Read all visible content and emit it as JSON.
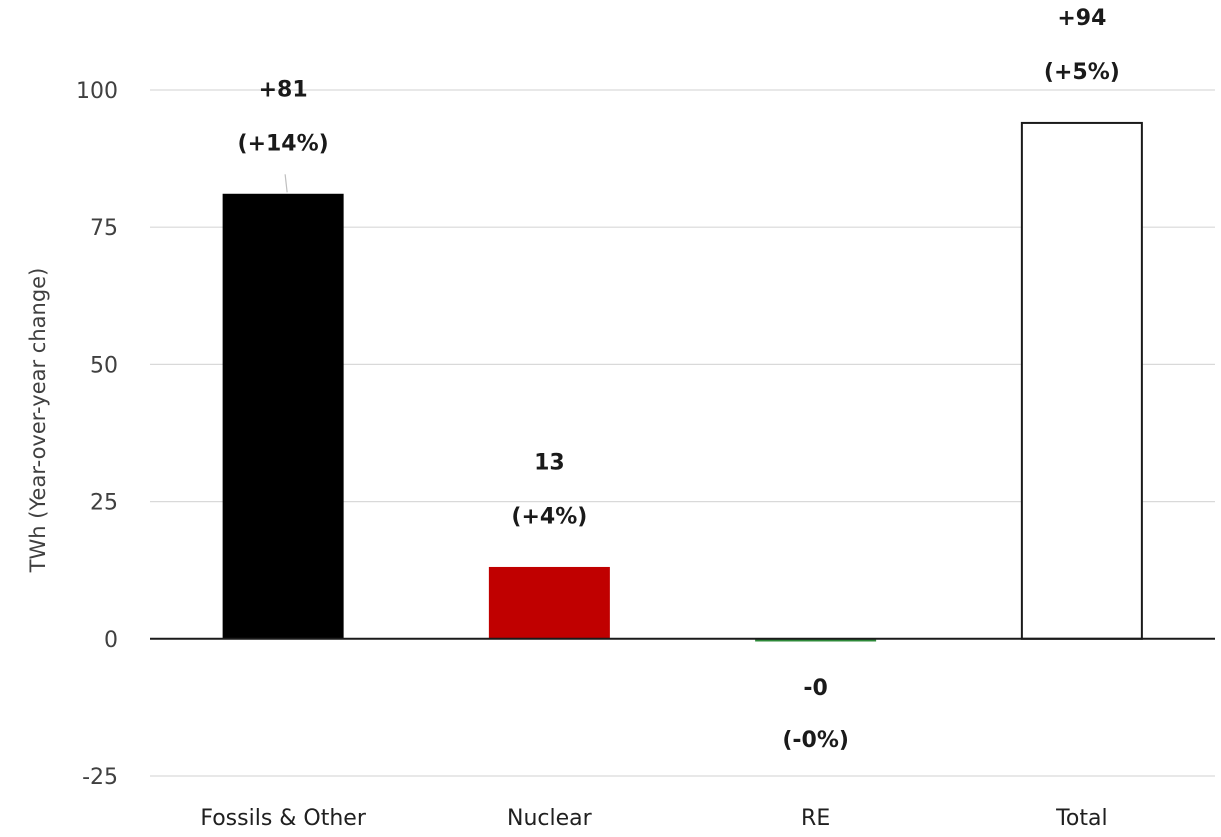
{
  "chart_data": {
    "type": "bar",
    "ylabel": "TWh (Year-over-year change)",
    "ylim": [
      -25,
      100
    ],
    "yticks": [
      -25,
      0,
      25,
      50,
      75,
      100
    ],
    "grid": true,
    "categories": [
      "Fossils & Other",
      "Nuclear",
      "RE",
      "Total"
    ],
    "values": [
      81,
      13,
      -0.4,
      94
    ],
    "value_labels": [
      "+81",
      "13",
      "-0",
      "+94"
    ],
    "percent_labels": [
      "(+14%)",
      "(+4%)",
      "(-0%)",
      "(+5%)"
    ],
    "colors": [
      "#000000",
      "#c00000",
      "#2e8b3a",
      "#ffffff"
    ]
  }
}
